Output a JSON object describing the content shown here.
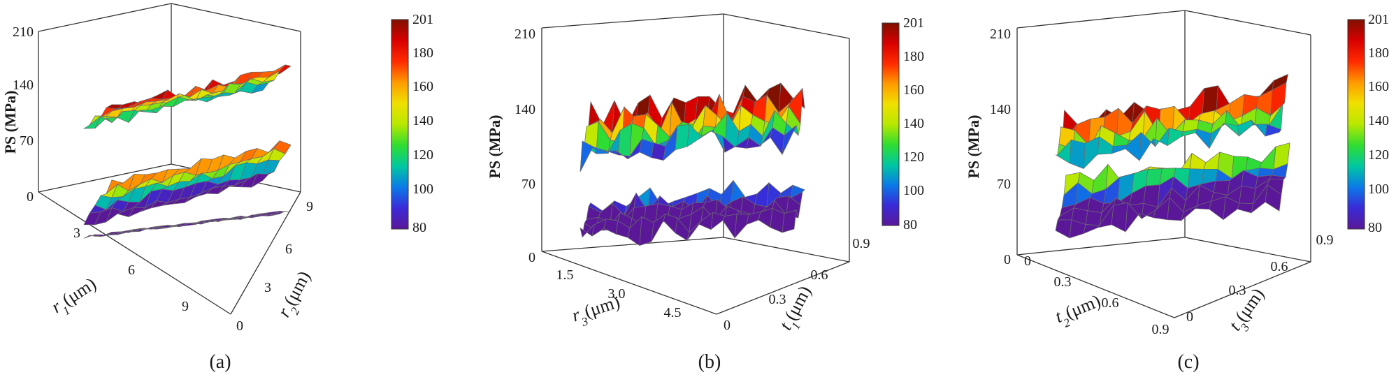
{
  "chart_data": [
    {
      "type": "surface3d",
      "panel_label": "(a)",
      "zlabel": "PS (MPa)",
      "zticks": [
        "0",
        "70",
        "140",
        "210"
      ],
      "zlim": [
        0,
        210
      ],
      "axis1": {
        "label_var": "r",
        "label_sub": "1",
        "label_unit": "(μm)",
        "ticks": [
          "3",
          "6",
          "9"
        ]
      },
      "axis2": {
        "label_var": "r",
        "label_sub": "2",
        "label_unit": "(μm)",
        "ticks": [
          "0",
          "3",
          "6",
          "9"
        ]
      },
      "colorbar": {
        "ticks": [
          "201",
          "180",
          "160",
          "140",
          "120",
          "100",
          "80"
        ],
        "range": [
          80,
          201
        ]
      },
      "layers": [
        {
          "name": "upper",
          "approx_range": [
            110,
            195
          ]
        },
        {
          "name": "middle",
          "approx_range": [
            50,
            180
          ]
        },
        {
          "name": "lower",
          "approx_range": [
            30,
            55
          ]
        }
      ]
    },
    {
      "type": "surface3d",
      "panel_label": "(b)",
      "zlabel": "PS (MPa)",
      "zticks": [
        "0",
        "70",
        "140",
        "210"
      ],
      "zlim": [
        0,
        210
      ],
      "axis1": {
        "label_var": "r",
        "label_sub": "3",
        "label_unit": "(μm)",
        "ticks": [
          "1.5",
          "3.0",
          "4.5"
        ]
      },
      "axis2": {
        "label_var": "t",
        "label_sub": "1",
        "label_unit": "(μm)",
        "ticks": [
          "0",
          "0.3",
          "0.6",
          "0.9"
        ]
      },
      "colorbar": {
        "ticks": [
          "201",
          "180",
          "160",
          "140",
          "120",
          "100",
          "80"
        ],
        "range": [
          80,
          201
        ]
      },
      "layers": [
        {
          "name": "upper",
          "approx_range": [
            90,
            205
          ]
        },
        {
          "name": "lower",
          "approx_range": [
            10,
            110
          ]
        }
      ]
    },
    {
      "type": "surface3d",
      "panel_label": "(c)",
      "zlabel": "PS (MPa)",
      "zticks": [
        "0",
        "70",
        "140",
        "210"
      ],
      "zlim": [
        0,
        210
      ],
      "axis1": {
        "label_var": "t",
        "label_sub": "2",
        "label_unit": "(μm)",
        "ticks": [
          "0",
          "0.3",
          "0.6",
          "0.9"
        ]
      },
      "axis2": {
        "label_var": "t",
        "label_sub": "3",
        "label_unit": "(μm)",
        "ticks": [
          "0",
          "0.3",
          "0.6",
          "0.9"
        ]
      },
      "colorbar": {
        "ticks": [
          "201",
          "180",
          "160",
          "140",
          "120",
          "100",
          "80"
        ],
        "range": [
          80,
          201
        ]
      },
      "layers": [
        {
          "name": "upper",
          "approx_range": [
            100,
            205
          ]
        },
        {
          "name": "lower",
          "approx_range": [
            10,
            150
          ]
        }
      ]
    }
  ],
  "palette": {
    "stops": [
      "#5a1898",
      "#3a2ad8",
      "#0a7ae8",
      "#00c8a0",
      "#30dd30",
      "#b8e800",
      "#f0e000",
      "#ff9a00",
      "#ff2a00",
      "#d80000",
      "#801000"
    ],
    "grid": "#b8b8b8",
    "mesh": "#6a6a6a",
    "axis": "#333333"
  }
}
